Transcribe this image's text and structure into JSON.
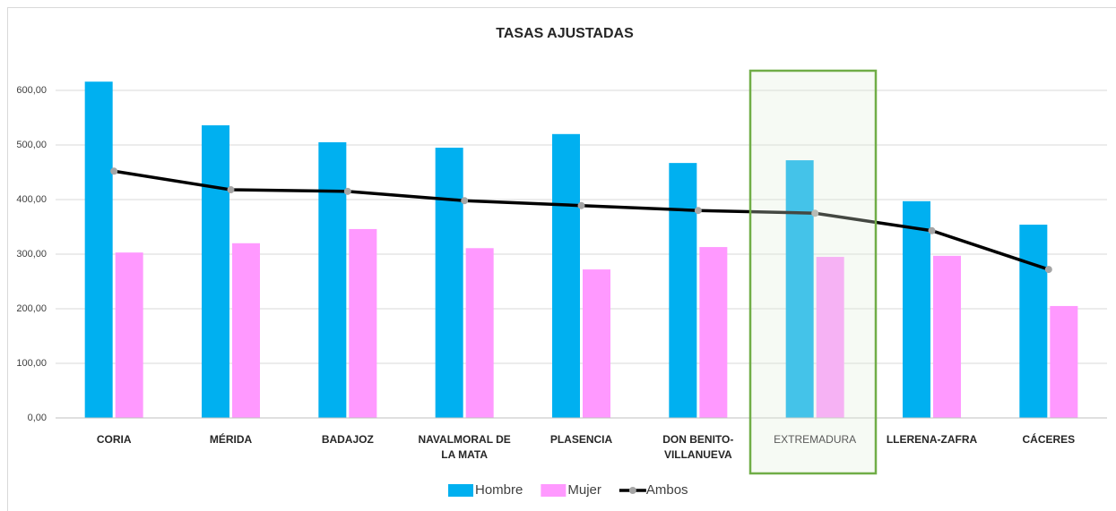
{
  "chart_data": {
    "type": "bar",
    "title": "TASAS AJUSTADAS",
    "categories": [
      "CORIA",
      "MÉRIDA",
      "BADAJOZ",
      "NAVALMORAL DE LA MATA",
      "PLASENCIA",
      "DON BENITO-VILLANUEVA",
      "EXTREMADURA",
      "LLERENA-ZAFRA",
      "CÁCERES"
    ],
    "series": [
      {
        "name": "Hombre",
        "type": "bar",
        "color": "#00b0f0",
        "values": [
          616,
          536,
          505,
          495,
          520,
          467,
          472,
          397,
          354
        ]
      },
      {
        "name": "Mujer",
        "type": "bar",
        "color": "#ff99ff",
        "values": [
          303,
          320,
          346,
          311,
          272,
          313,
          295,
          297,
          205
        ]
      },
      {
        "name": "Ambos",
        "type": "line",
        "color": "#000000",
        "marker_color": "#a5a5a5",
        "values": [
          452,
          418,
          415,
          398,
          389,
          380,
          375,
          343,
          272
        ]
      }
    ],
    "ylim": [
      0,
      600
    ],
    "yticks": [
      {
        "value": 0,
        "label": "0,00"
      },
      {
        "value": 100,
        "label": "100,00"
      },
      {
        "value": 200,
        "label": "200,00"
      },
      {
        "value": 300,
        "label": "300,00"
      },
      {
        "value": 400,
        "label": "400,00"
      },
      {
        "value": 500,
        "label": "500,00"
      },
      {
        "value": 600,
        "label": "600,00"
      }
    ],
    "grid": true,
    "legend": "bottom"
  }
}
